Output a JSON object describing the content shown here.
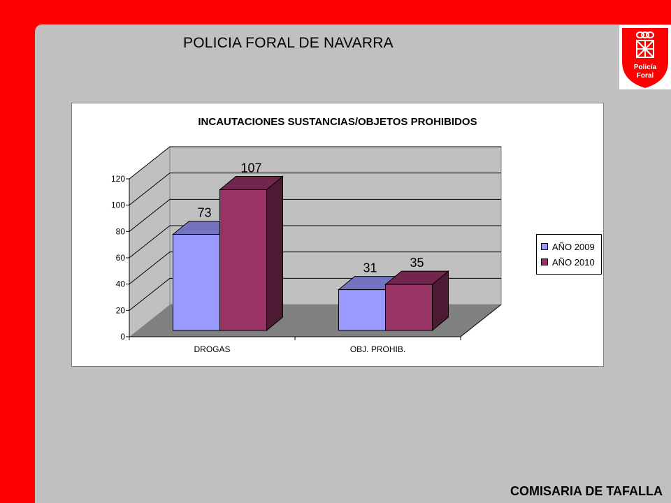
{
  "header": {
    "title": "POLICIA FORAL DE NAVARRA"
  },
  "logo": {
    "line1": "Policía",
    "line2": "Foral",
    "icon": "navarra-chains-shield-icon"
  },
  "footer": {
    "title": "COMISARIA DE TAFALLA"
  },
  "colors": {
    "frame": "#ff0000",
    "slide": "#c0c0c0",
    "series2009": "#9999ff",
    "series2010": "#993366"
  },
  "chart_data": {
    "type": "bar",
    "title": "INCAUTACIONES SUSTANCIAS/OBJETOS PROHIBIDOS",
    "categories": [
      "DROGAS",
      "OBJ. PROHIB."
    ],
    "series": [
      {
        "name": "AÑO 2009",
        "values": [
          73,
          31
        ],
        "color": "#9999ff"
      },
      {
        "name": "AÑO 2010",
        "values": [
          107,
          35
        ],
        "color": "#993366"
      }
    ],
    "yticks": [
      "0",
      "20",
      "40",
      "60",
      "80",
      "100",
      "120"
    ],
    "ylim": [
      0,
      120
    ],
    "grid": true,
    "legend": "right",
    "style": "3d-clustered-column"
  }
}
